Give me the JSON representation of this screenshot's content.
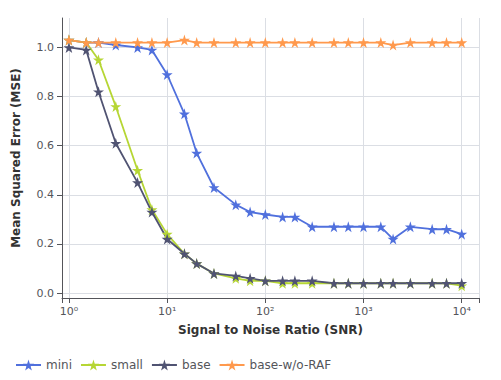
{
  "chart_data": {
    "type": "line",
    "xlabel": "Signal to Noise Ratio (SNR)",
    "ylabel": "Mean Squared Error (MSE)",
    "x": [
      1,
      1.5,
      2,
      3,
      5,
      7,
      10,
      15,
      20,
      30,
      50,
      70,
      100,
      150,
      200,
      300,
      500,
      700,
      1000,
      1500,
      2000,
      3000,
      5000,
      7000,
      10000
    ],
    "series": [
      {
        "name": "mini",
        "values": [
          1.03,
          1.02,
          1.02,
          1.01,
          1.0,
          0.99,
          0.89,
          0.73,
          0.57,
          0.43,
          0.36,
          0.33,
          0.32,
          0.31,
          0.31,
          0.27,
          0.27,
          0.27,
          0.27,
          0.27,
          0.22,
          0.27,
          0.26,
          0.26,
          0.24
        ]
      },
      {
        "name": "small",
        "values": [
          1.03,
          1.02,
          0.95,
          0.76,
          0.5,
          0.34,
          0.24,
          0.16,
          0.12,
          0.08,
          0.06,
          0.05,
          0.05,
          0.04,
          0.04,
          0.04,
          0.04,
          0.04,
          0.04,
          0.04,
          0.04,
          0.04,
          0.04,
          0.04,
          0.03
        ]
      },
      {
        "name": "base",
        "values": [
          1.0,
          0.99,
          0.82,
          0.61,
          0.45,
          0.33,
          0.22,
          0.16,
          0.12,
          0.08,
          0.07,
          0.06,
          0.05,
          0.05,
          0.05,
          0.05,
          0.04,
          0.04,
          0.04,
          0.04,
          0.04,
          0.04,
          0.04,
          0.04,
          0.04
        ]
      },
      {
        "name": "base-w/o-RAF",
        "values": [
          1.03,
          1.02,
          1.02,
          1.02,
          1.02,
          1.02,
          1.02,
          1.03,
          1.02,
          1.02,
          1.02,
          1.02,
          1.02,
          1.02,
          1.02,
          1.02,
          1.02,
          1.02,
          1.02,
          1.02,
          1.01,
          1.02,
          1.02,
          1.02,
          1.02
        ]
      }
    ],
    "marker": "star",
    "log": "x",
    "xlim": [
      0.85,
      15000
    ],
    "xticks": [
      {
        "value": 1,
        "label": "10⁰"
      },
      {
        "value": 10,
        "label": "10¹"
      },
      {
        "value": 100,
        "label": "10²"
      },
      {
        "value": 1000,
        "label": "10³"
      },
      {
        "value": 10000,
        "label": "10⁴"
      }
    ],
    "ylim": [
      -0.02,
      1.12
    ],
    "yticks": [
      {
        "value": 0.0,
        "label": "0.0"
      },
      0.2,
      0.4,
      0.6,
      0.8,
      {
        "value": 1.0,
        "label": "1.0"
      }
    ],
    "grid": true,
    "legend": "lower left"
  }
}
